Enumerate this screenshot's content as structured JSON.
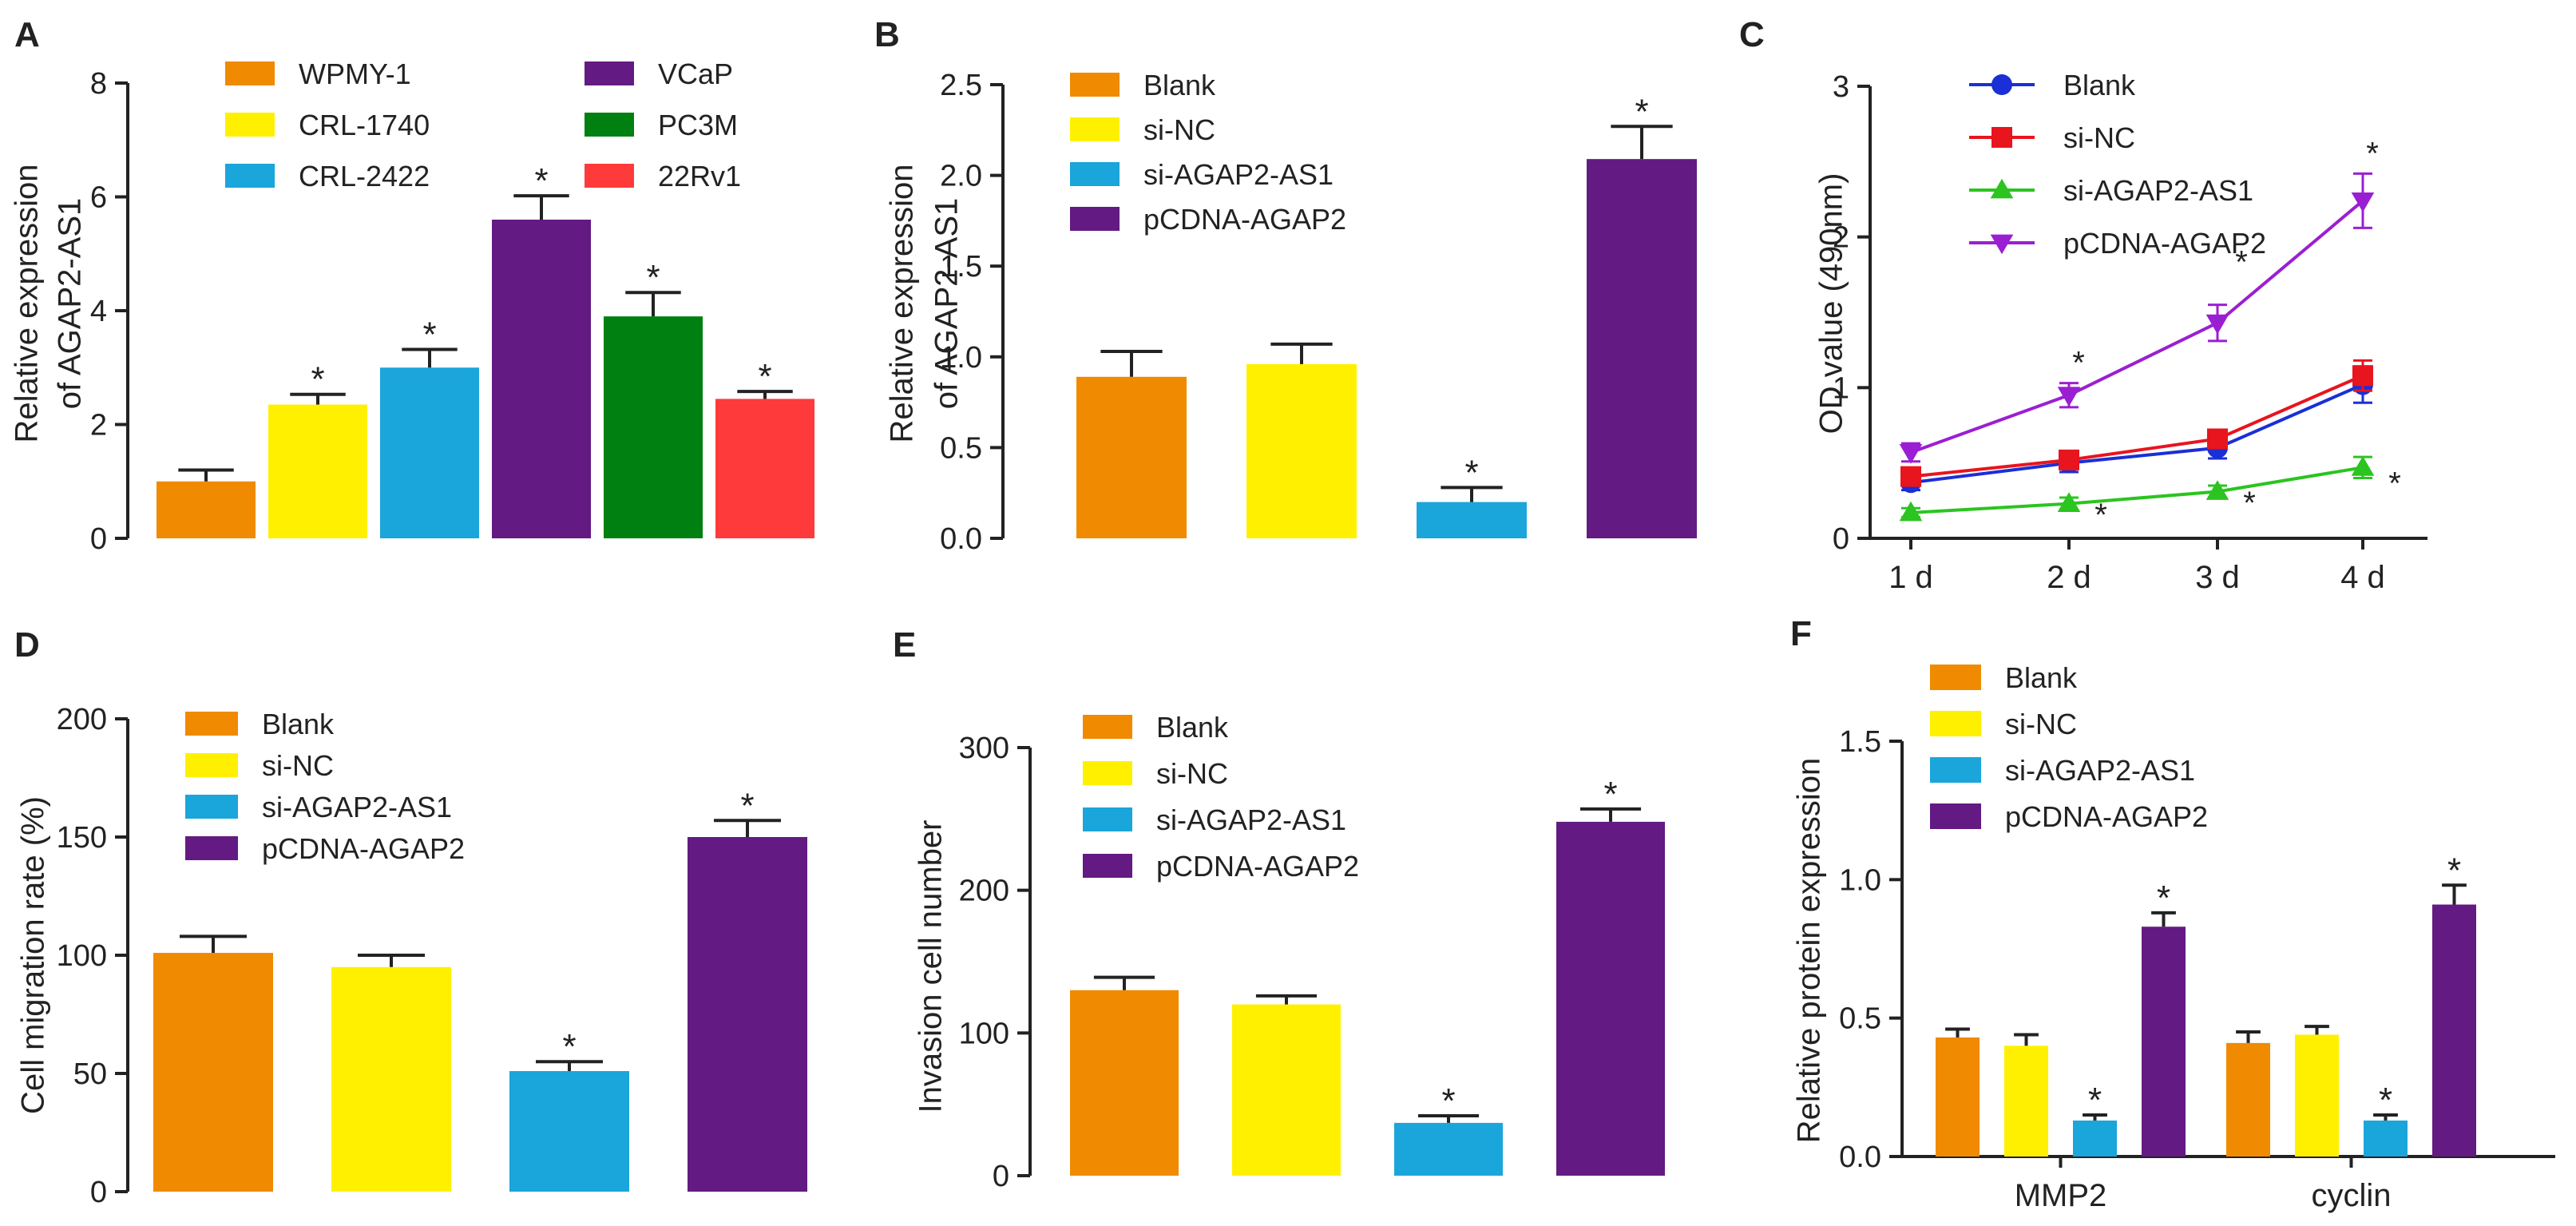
{
  "colors": {
    "orange": "#F08A00",
    "yellow": "#FFF000",
    "blue": "#1AA5DB",
    "purple": "#631A82",
    "green": "#008010",
    "red": "#FF3A3A",
    "line_blue": "#1A2FD6",
    "line_red": "#E8141E",
    "line_green": "#2BC420",
    "line_purple": "#9B1FD2"
  },
  "chart_data": [
    {
      "panel": "A",
      "type": "bar",
      "title": "",
      "xlabel": "",
      "ylabel_lines": [
        "Relative expression",
        "of AGAP2-AS1"
      ],
      "ylim": [
        0,
        8
      ],
      "yticks": [
        "0",
        "2",
        "4",
        "6",
        "8"
      ],
      "categories": [
        "WPMY-1",
        "CRL-1740",
        "CRL-2422",
        "VCaP",
        "PC3M",
        "22Rv1"
      ],
      "values": [
        1.0,
        2.35,
        3.0,
        5.6,
        3.9,
        2.45
      ],
      "errors": [
        0.2,
        0.18,
        0.32,
        0.42,
        0.42,
        0.13
      ],
      "significant": [
        false,
        true,
        true,
        true,
        true,
        true
      ],
      "color_keys": [
        "orange",
        "yellow",
        "blue",
        "purple",
        "green",
        "red"
      ],
      "legend": [
        "WPMY-1",
        "CRL-1740",
        "CRL-2422",
        "VCaP",
        "PC3M",
        "22Rv1"
      ],
      "legend_placement": "top, two columns"
    },
    {
      "panel": "B",
      "type": "bar",
      "title": "",
      "xlabel": "",
      "ylabel_lines": [
        "Relative expression",
        "of AGAP2-AS1"
      ],
      "ylim": [
        0,
        2.5
      ],
      "yticks": [
        "0.0",
        "0.5",
        "1.0",
        "1.5",
        "2.0",
        "2.5"
      ],
      "categories": [
        "Blank",
        "si-NC",
        "si-AGAP2-AS1",
        "pCDNA-AGAP2"
      ],
      "values": [
        0.89,
        0.96,
        0.2,
        2.09
      ],
      "errors": [
        0.14,
        0.11,
        0.08,
        0.18
      ],
      "significant": [
        false,
        false,
        true,
        true
      ],
      "color_keys": [
        "orange",
        "yellow",
        "blue",
        "purple"
      ],
      "legend": [
        "Blank",
        "si-NC",
        "si-AGAP2-AS1",
        "pCDNA-AGAP2"
      ],
      "legend_placement": "top-left"
    },
    {
      "panel": "C",
      "type": "line",
      "title": "",
      "xlabel": "",
      "ylabel_lines": [
        "OD value (490nm)"
      ],
      "ylim": [
        0,
        3
      ],
      "yticks": [
        "0",
        "1",
        "2",
        "3"
      ],
      "x": [
        "1 d",
        "2 d",
        "3 d",
        "4 d"
      ],
      "series": [
        {
          "name": "Blank",
          "values": [
            0.37,
            0.5,
            0.6,
            1.02
          ],
          "errors": [
            0.05,
            0.06,
            0.07,
            0.12
          ],
          "color_key": "line_blue",
          "marker": "circle"
        },
        {
          "name": "si-NC",
          "values": [
            0.41,
            0.52,
            0.66,
            1.08
          ],
          "errors": [
            0.05,
            0.06,
            0.06,
            0.1
          ],
          "color_key": "line_red",
          "marker": "square"
        },
        {
          "name": "si-AGAP2-AS1",
          "values": [
            0.17,
            0.23,
            0.31,
            0.47
          ],
          "errors": [
            0.03,
            0.04,
            0.04,
            0.07
          ],
          "color_key": "line_green",
          "marker": "triangle-up"
        },
        {
          "name": "pCDNA-AGAP2",
          "values": [
            0.57,
            0.95,
            1.43,
            2.24
          ],
          "errors": [
            0.06,
            0.08,
            0.12,
            0.18
          ],
          "color_key": "line_purple",
          "marker": "triangle-down"
        }
      ],
      "annotations": [
        "*",
        "*",
        "*",
        "*",
        "*",
        "*"
      ],
      "legend": [
        "Blank",
        "si-NC",
        "si-AGAP2-AS1",
        "pCDNA-AGAP2"
      ],
      "legend_placement": "top-left"
    },
    {
      "panel": "D",
      "type": "bar",
      "title": "",
      "xlabel": "",
      "ylabel_lines": [
        "Cell migration rate (%)"
      ],
      "ylim": [
        0,
        200
      ],
      "yticks": [
        "0",
        "50",
        "100",
        "150",
        "200"
      ],
      "categories": [
        "Blank",
        "si-NC",
        "si-AGAP2-AS1",
        "pCDNA-AGAP2"
      ],
      "values": [
        101,
        95,
        51,
        150
      ],
      "errors": [
        7,
        5,
        4,
        7
      ],
      "significant": [
        false,
        false,
        true,
        true
      ],
      "color_keys": [
        "orange",
        "yellow",
        "blue",
        "purple"
      ],
      "legend": [
        "Blank",
        "si-NC",
        "si-AGAP2-AS1",
        "pCDNA-AGAP2"
      ],
      "legend_placement": "top-left"
    },
    {
      "panel": "E",
      "type": "bar",
      "title": "",
      "xlabel": "",
      "ylabel_lines": [
        "Invasion cell number"
      ],
      "ylim": [
        0,
        300
      ],
      "yticks": [
        "0",
        "100",
        "200",
        "300"
      ],
      "categories": [
        "Blank",
        "si-NC",
        "si-AGAP2-AS1",
        "pCDNA-AGAP2"
      ],
      "values": [
        130,
        120,
        37,
        248
      ],
      "errors": [
        9,
        6,
        5,
        9
      ],
      "significant": [
        false,
        false,
        true,
        true
      ],
      "color_keys": [
        "orange",
        "yellow",
        "blue",
        "purple"
      ],
      "legend": [
        "Blank",
        "si-NC",
        "si-AGAP2-AS1",
        "pCDNA-AGAP2"
      ],
      "legend_placement": "top-left"
    },
    {
      "panel": "F",
      "type": "bar",
      "title": "",
      "xlabel": "",
      "ylabel_lines": [
        "Relative protein expression"
      ],
      "ylim": [
        0,
        1.5
      ],
      "yticks": [
        "0.0",
        "0.5",
        "1.0",
        "1.5"
      ],
      "categories": [
        "MMP2",
        "cyclin"
      ],
      "series": [
        {
          "name": "Blank",
          "values": [
            0.43,
            0.41
          ],
          "errors": [
            0.03,
            0.04
          ],
          "significant": [
            false,
            false
          ],
          "color_key": "orange"
        },
        {
          "name": "si-NC",
          "values": [
            0.4,
            0.44
          ],
          "errors": [
            0.04,
            0.03
          ],
          "significant": [
            false,
            false
          ],
          "color_key": "yellow"
        },
        {
          "name": "si-AGAP2-AS1",
          "values": [
            0.13,
            0.13
          ],
          "errors": [
            0.02,
            0.02
          ],
          "significant": [
            true,
            true
          ],
          "color_key": "blue"
        },
        {
          "name": "pCDNA-AGAP2",
          "values": [
            0.83,
            0.91
          ],
          "errors": [
            0.05,
            0.07
          ],
          "significant": [
            true,
            true
          ],
          "color_key": "purple"
        }
      ],
      "legend": [
        "Blank",
        "si-NC",
        "si-AGAP2-AS1",
        "pCDNA-AGAP2"
      ],
      "legend_placement": "top-left"
    }
  ]
}
